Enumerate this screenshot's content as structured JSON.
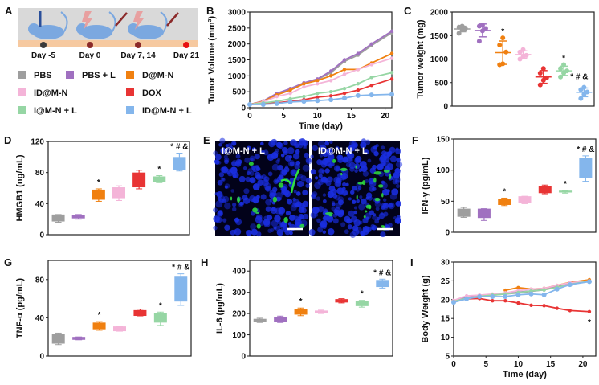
{
  "panel_labels": [
    "A",
    "B",
    "C",
    "D",
    "E",
    "F",
    "G",
    "H",
    "I"
  ],
  "schematic": {
    "timeline": [
      "Day -5",
      "Day 0",
      "Day 7, 14",
      "Day 21"
    ],
    "dot_colors": [
      "#3a3a3a",
      "#8b2a2a",
      "#8b2a2a",
      "#e81010"
    ],
    "mouse_color": "#7ba8e0",
    "background": "#d9d9d9",
    "strip_color": "#f6c9a0",
    "icons": [
      "syringe-icon",
      "laser-icon",
      "mouse-icon"
    ]
  },
  "groups": [
    {
      "name": "PBS",
      "color": "#9e9e9e"
    },
    {
      "name": "PBS + L",
      "color": "#a070c0"
    },
    {
      "name": "D@M-N",
      "color": "#f08010"
    },
    {
      "name": "ID@M-N",
      "color": "#f4b4d8"
    },
    {
      "name": "DOX",
      "color": "#e83434"
    },
    {
      "name": "I@M-N + L",
      "color": "#96d6a4"
    },
    {
      "name": "ID@M-N + L",
      "color": "#84b6ec"
    }
  ],
  "images": {
    "labels": [
      "I@M-N + L",
      "ID@M-N + L"
    ],
    "colors": {
      "nuclei": "#1a2ee0",
      "signal": "#30e040",
      "background": "#02021a"
    }
  },
  "chart_data": [
    {
      "panel": "B",
      "type": "line",
      "xlabel": "Time (day)",
      "ylabel": "Tumor Volume (mm³)",
      "xlim": [
        0,
        21
      ],
      "ylim": [
        0,
        3000
      ],
      "xticks": [
        0,
        5,
        10,
        15,
        20
      ],
      "yticks": [
        0,
        500,
        1000,
        1500,
        2000,
        2500,
        3000
      ],
      "x": [
        0,
        2,
        4,
        6,
        8,
        10,
        12,
        14,
        16,
        18,
        21
      ],
      "series": [
        {
          "group": 0,
          "values": [
            100,
            200,
            400,
            580,
            750,
            880,
            1100,
            1450,
            1650,
            1950,
            2350
          ]
        },
        {
          "group": 1,
          "values": [
            100,
            210,
            450,
            600,
            780,
            900,
            1150,
            1500,
            1700,
            2000,
            2400
          ]
        },
        {
          "group": 2,
          "values": [
            100,
            200,
            400,
            550,
            750,
            850,
            1000,
            1200,
            1200,
            1400,
            1700
          ]
        },
        {
          "group": 3,
          "values": [
            100,
            180,
            350,
            450,
            650,
            750,
            850,
            1050,
            1200,
            1350,
            1550
          ]
        },
        {
          "group": 4,
          "values": [
            100,
            130,
            150,
            200,
            250,
            330,
            370,
            450,
            550,
            700,
            900
          ]
        },
        {
          "group": 5,
          "values": [
            100,
            150,
            200,
            280,
            350,
            450,
            500,
            600,
            750,
            950,
            1100
          ]
        },
        {
          "group": 6,
          "values": [
            100,
            100,
            130,
            180,
            200,
            220,
            250,
            300,
            380,
            400,
            420
          ]
        }
      ]
    },
    {
      "panel": "C",
      "type": "scatter",
      "ylabel": "Tumor weight (mg)",
      "ylim": [
        0,
        2000
      ],
      "yticks": [
        0,
        500,
        1000,
        1500,
        2000
      ],
      "points": [
        [
          1550,
          1620,
          1650,
          1680,
          1700
        ],
        [
          1380,
          1600,
          1650,
          1700,
          1720
        ],
        [
          880,
          900,
          1150,
          1300,
          1450
        ],
        [
          1000,
          1050,
          1080,
          1150,
          1200
        ],
        [
          450,
          550,
          600,
          700,
          800
        ],
        [
          620,
          700,
          750,
          800,
          880
        ],
        [
          160,
          250,
          300,
          350,
          400
        ]
      ],
      "annotations": [
        {
          "group": 2,
          "text": "*"
        },
        {
          "group": 5,
          "text": "*"
        },
        {
          "group": 6,
          "text": "* # &"
        }
      ]
    },
    {
      "panel": "D",
      "type": "box",
      "ylabel": "HMGB1 (ng/mL)",
      "ylim": [
        0,
        120
      ],
      "yticks": [
        0,
        40,
        80,
        120
      ],
      "boxes": [
        [
          16,
          17,
          26,
          26
        ],
        [
          20,
          21,
          25,
          26
        ],
        [
          43,
          45,
          58,
          59
        ],
        [
          44,
          47,
          61,
          63
        ],
        [
          59,
          61,
          80,
          83
        ],
        [
          67,
          68,
          75,
          76
        ],
        [
          82,
          83,
          100,
          105
        ]
      ],
      "annotations": [
        {
          "group": 2,
          "text": "*"
        },
        {
          "group": 5,
          "text": "*"
        },
        {
          "group": 6,
          "text": "* # &"
        }
      ]
    },
    {
      "panel": "F",
      "type": "box",
      "ylabel": "IFN-γ  (pg/mL)",
      "ylim": [
        0,
        150
      ],
      "yticks": [
        0,
        50,
        100,
        150
      ],
      "boxes": [
        [
          24,
          25,
          38,
          40
        ],
        [
          19,
          23,
          38,
          38
        ],
        [
          43,
          44,
          54,
          55
        ],
        [
          46,
          47,
          58,
          58
        ],
        [
          62,
          63,
          74,
          76
        ],
        [
          63,
          64,
          67,
          67
        ],
        [
          82,
          87,
          120,
          123
        ]
      ],
      "annotations": [
        {
          "group": 2,
          "text": "*"
        },
        {
          "group": 5,
          "text": "*"
        },
        {
          "group": 6,
          "text": "* # &"
        }
      ]
    },
    {
      "panel": "G",
      "type": "box",
      "ylabel": "TNF-α  (pg/mL)",
      "ylim": [
        0,
        100
      ],
      "yticks": [
        0,
        40,
        80
      ],
      "boxes": [
        [
          12,
          13,
          23,
          24
        ],
        [
          17,
          17,
          20,
          20
        ],
        [
          27,
          28,
          35,
          36
        ],
        [
          26,
          26,
          31,
          31
        ],
        [
          42,
          42,
          48,
          49
        ],
        [
          32,
          35,
          45,
          46
        ],
        [
          53,
          57,
          83,
          86
        ]
      ],
      "annotations": [
        {
          "group": 2,
          "text": "*"
        },
        {
          "group": 5,
          "text": "*"
        },
        {
          "group": 6,
          "text": "* # &"
        }
      ]
    },
    {
      "panel": "H",
      "type": "box",
      "ylabel": "IL-6 (pg/mL)",
      "ylim": [
        0,
        450
      ],
      "yticks": [
        0,
        100,
        200,
        300,
        400
      ],
      "boxes": [
        [
          158,
          160,
          175,
          178
        ],
        [
          158,
          162,
          185,
          188
        ],
        [
          190,
          195,
          222,
          226
        ],
        [
          200,
          202,
          214,
          216
        ],
        [
          250,
          252,
          268,
          270
        ],
        [
          230,
          235,
          258,
          262
        ],
        [
          320,
          325,
          358,
          362
        ]
      ],
      "annotations": [
        {
          "group": 2,
          "text": "*"
        },
        {
          "group": 5,
          "text": "*"
        },
        {
          "group": 6,
          "text": "* # &"
        }
      ]
    },
    {
      "panel": "I",
      "type": "line",
      "xlabel": "Time (day)",
      "ylabel": "Body Weight (g)",
      "xlim": [
        0,
        22
      ],
      "ylim": [
        5,
        30
      ],
      "xticks": [
        0,
        5,
        10,
        15,
        20
      ],
      "yticks": [
        5,
        10,
        15,
        20,
        25,
        30
      ],
      "x": [
        0,
        2,
        4,
        6,
        8,
        10,
        12,
        14,
        16,
        18,
        21
      ],
      "series": [
        {
          "group": 0,
          "values": [
            19.5,
            20.5,
            21.0,
            21.2,
            21.5,
            21.8,
            22.2,
            22.6,
            23.4,
            24.2,
            25.0
          ]
        },
        {
          "group": 1,
          "values": [
            19.6,
            20.6,
            21.0,
            21.3,
            21.6,
            22.0,
            22.3,
            22.7,
            23.5,
            24.3,
            25.1
          ]
        },
        {
          "group": 2,
          "values": [
            null,
            null,
            null,
            null,
            22.5,
            23.2,
            22.8,
            23.0,
            23.8,
            24.6,
            25.3
          ]
        },
        {
          "group": 3,
          "values": [
            19.8,
            21.0,
            21.2,
            21.5,
            21.8,
            22.4,
            22.8,
            23.0,
            23.8,
            24.5,
            25.0
          ]
        },
        {
          "group": 4,
          "values": [
            19.5,
            20.2,
            20.3,
            19.7,
            19.7,
            19.1,
            18.5,
            18.4,
            17.7,
            17.1,
            16.8
          ]
        },
        {
          "group": 5,
          "values": [
            19.5,
            20.4,
            20.9,
            21.2,
            21.5,
            21.9,
            22.3,
            22.6,
            23.3,
            24.1,
            24.9
          ]
        },
        {
          "group": 6,
          "values": [
            19.3,
            20.2,
            20.8,
            20.8,
            20.8,
            21.3,
            21.5,
            21.3,
            22.8,
            24.0,
            24.8
          ]
        }
      ],
      "annotations": [
        {
          "group": 4,
          "text": "*"
        }
      ]
    }
  ]
}
